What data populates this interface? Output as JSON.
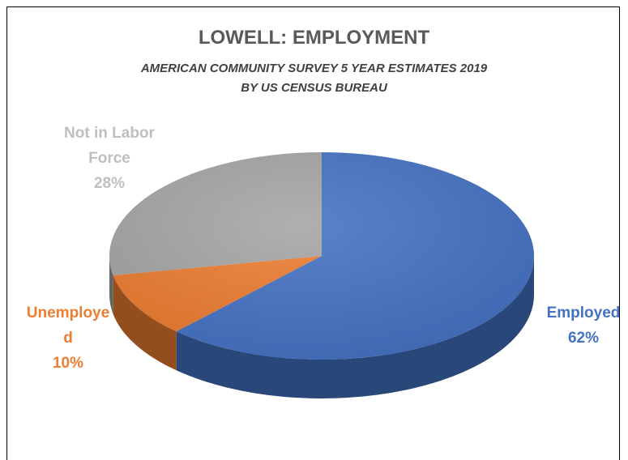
{
  "title": "LOWELL: EMPLOYMENT",
  "subtitle_line1": "AMERICAN COMMUNITY SURVEY 5 YEAR ESTIMATES 2019",
  "subtitle_line2": "BY US CENSUS BUREAU",
  "chart_data": {
    "type": "pie",
    "title": "LOWELL: EMPLOYMENT",
    "subtitle": "AMERICAN COMMUNITY SURVEY 5 YEAR ESTIMATES 2019 BY US CENSUS BUREAU",
    "style": "3d",
    "slices": [
      {
        "label": "Employed",
        "value": 62,
        "color": "#4472c4",
        "label_color": "#4472c4",
        "label_lines": [
          "Employed",
          "62%"
        ]
      },
      {
        "label": "Unemployed",
        "value": 10,
        "color": "#ed7d31",
        "label_color": "#ed7d31",
        "label_lines": [
          "Unemploye",
          "d",
          "10%"
        ]
      },
      {
        "label": "Not in Labor Force",
        "value": 28,
        "color": "#a5a5a5",
        "label_color": "#bfbfbf",
        "label_lines": [
          "Not in Labor",
          "Force",
          "28%"
        ]
      }
    ]
  }
}
